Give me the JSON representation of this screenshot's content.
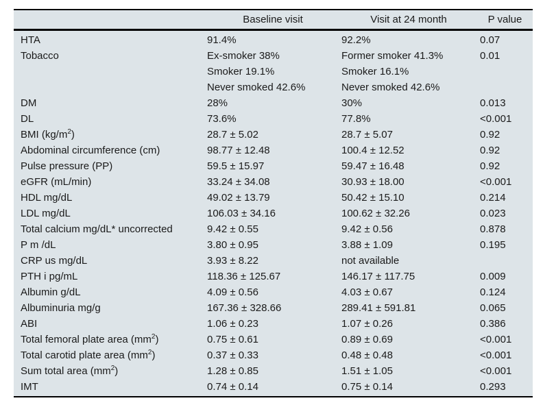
{
  "colors": {
    "table_background": "#dde4e8",
    "border": "#000000",
    "text": "#1a1a1a",
    "page_background": "#ffffff"
  },
  "table": {
    "columns": [
      "Baseline visit",
      "Visit at 24 month",
      "P value"
    ],
    "rows": [
      {
        "label": "HTA",
        "baseline": "91.4%",
        "visit": "92.2%",
        "p": "0.07"
      },
      {
        "label": "Tobacco",
        "baseline": "Ex-smoker 38%",
        "visit": "Former smoker 41.3%",
        "p": "0.01"
      },
      {
        "label": "",
        "baseline": "Smoker 19.1%",
        "visit": "Smoker 16.1%",
        "p": ""
      },
      {
        "label": "",
        "baseline": "Never smoked 42.6%",
        "visit": "Never smoked 42.6%",
        "p": ""
      },
      {
        "label": "DM",
        "baseline": "28%",
        "visit": "30%",
        "p": "0.013"
      },
      {
        "label": "DL",
        "baseline": "73.6%",
        "visit": "77.8%",
        "p": "<0.001"
      },
      {
        "label": "BMI (kg/m",
        "label_sup": "2",
        "label_post": ")",
        "baseline": "28.7 ± 5.02",
        "visit": "28.7 ± 5.07",
        "p": "0.92"
      },
      {
        "label": "Abdominal circumference (cm)",
        "baseline": "98.77 ± 12.48",
        "visit": "100.4 ± 12.52",
        "p": "0.92"
      },
      {
        "label": "Pulse pressure (PP)",
        "baseline": "59.5 ± 15.97",
        "visit": "59.47 ± 16.48",
        "p": "0.92"
      },
      {
        "label": "eGFR (mL/min)",
        "baseline": "33.24 ± 34.08",
        "visit": "30.93 ± 18.00",
        "p": "<0.001"
      },
      {
        "label": "HDL mg/dL",
        "baseline": "49.02 ± 13.79",
        "visit": "50.42 ± 15.10",
        "p": "0.214"
      },
      {
        "label": "LDL mg/dL",
        "baseline": "106.03 ± 34.16",
        "visit": "100.62 ± 32.26",
        "p": "0.023"
      },
      {
        "label": "Total calcium mg/dL* uncorrected",
        "baseline": "9.42 ± 0.55",
        "visit": "9.42 ± 0.56",
        "p": "0.878"
      },
      {
        "label": "P m /dL",
        "baseline": "3.80 ± 0.95",
        "visit": "3.88 ± 1.09",
        "p": "0.195"
      },
      {
        "label": "CRP us mg/dL",
        "baseline": "3.93 ± 8.22",
        "visit": "not available",
        "p": ""
      },
      {
        "label": "PTH i pg/mL",
        "baseline": "118.36 ± 125.67",
        "visit": "146.17 ± 117.75",
        "p": "0.009"
      },
      {
        "label": "Albumin g/dL",
        "baseline": "4.09 ± 0.56",
        "visit": "4.03 ± 0.67",
        "p": "0.124"
      },
      {
        "label": "Albuminuria mg/g",
        "baseline": "167.36 ± 328.66",
        "visit": "289.41 ± 591.81",
        "p": "0.065"
      },
      {
        "label": "ABI",
        "baseline": "1.06 ± 0.23",
        "visit": "1.07 ± 0.26",
        "p": "0.386"
      },
      {
        "label": "Total femoral plate area (mm",
        "label_sup": "2",
        "label_post": ")",
        "baseline": "0.75 ± 0.61",
        "visit": "0.89 ± 0.69",
        "p": "<0.001"
      },
      {
        "label": "Total carotid plate area (mm",
        "label_sup": "2",
        "label_post": ")",
        "baseline": "0.37 ± 0.33",
        "visit": "0.48 ± 0.48",
        "p": "<0.001"
      },
      {
        "label": "Sum total area (mm",
        "label_sup": "2",
        "label_post": ")",
        "baseline": "1.28 ± 0.85",
        "visit": "1.51 ± 1.05",
        "p": "<0.001"
      },
      {
        "label": "IMT",
        "baseline": "0.74 ± 0.14",
        "visit": "0.75 ± 0.14",
        "p": "0.293"
      }
    ]
  }
}
